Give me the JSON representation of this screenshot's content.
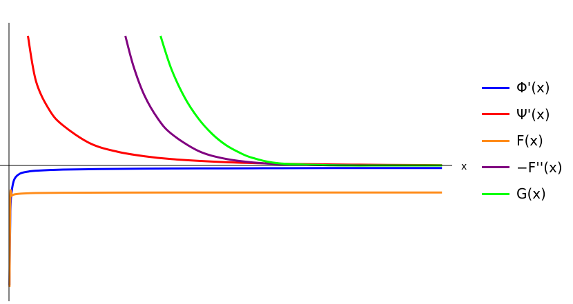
{
  "chart_data": {
    "type": "line",
    "xlabel": "x",
    "ylabel": "",
    "grid": false,
    "legend_position": "right",
    "series": [
      {
        "name": "Φ'(x)",
        "color": "#0000ff",
        "x": [
          0.02,
          0.05,
          0.1,
          0.2,
          0.4,
          0.7,
          1,
          2,
          4,
          6,
          8,
          10,
          12,
          14,
          16
        ],
        "y": [
          -8.7,
          -3.4,
          -1.9,
          -1.0,
          -0.6,
          -0.45,
          -0.38,
          -0.3,
          -0.25,
          -0.22,
          -0.21,
          -0.2,
          -0.19,
          -0.19,
          -0.19
        ]
      },
      {
        "name": "Ψ'(x)",
        "color": "#ff0000",
        "x": [
          0.7,
          1,
          1.5,
          2,
          3,
          4,
          5,
          6,
          8,
          10,
          12,
          14,
          16
        ],
        "y": [
          9.4,
          6.1,
          4.0,
          2.9,
          1.6,
          1.0,
          0.67,
          0.46,
          0.24,
          0.13,
          0.07,
          0.04,
          0.02
        ]
      },
      {
        "name": "F(x)",
        "color": "#ff8c1a",
        "x": [
          0.02,
          0.05,
          0.1,
          0.2,
          0.4,
          0.7,
          1,
          2,
          4,
          8,
          12,
          16
        ],
        "y": [
          -8.8,
          -2.3,
          -2.2,
          -2.1,
          -2.05,
          -2.02,
          -2.0,
          -1.98,
          -1.97,
          -1.96,
          -1.96,
          -1.96
        ]
      },
      {
        "name": "−F''(x)",
        "color": "#800080",
        "x": [
          4.3,
          4.6,
          5,
          5.5,
          6,
          7,
          8,
          9,
          10,
          12,
          14,
          16
        ],
        "y": [
          9.4,
          7.2,
          5.1,
          3.4,
          2.3,
          1.05,
          0.48,
          0.22,
          0.1,
          0.02,
          0.005,
          0.0
        ]
      },
      {
        "name": "G(x)",
        "color": "#00ff00",
        "x": [
          5.6,
          6,
          6.5,
          7,
          7.5,
          8,
          8.5,
          9,
          10,
          12,
          14,
          16
        ],
        "y": [
          9.4,
          7.0,
          4.9,
          3.4,
          2.3,
          1.5,
          0.95,
          0.55,
          0.15,
          0.01,
          0.0,
          0.0
        ]
      }
    ]
  }
}
